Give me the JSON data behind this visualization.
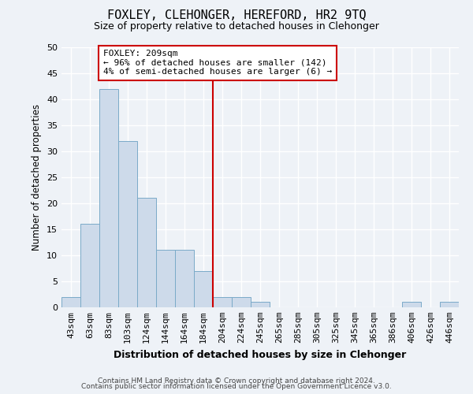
{
  "title": "FOXLEY, CLEHONGER, HEREFORD, HR2 9TQ",
  "subtitle": "Size of property relative to detached houses in Clehonger",
  "xlabel": "Distribution of detached houses by size in Clehonger",
  "ylabel": "Number of detached properties",
  "bin_labels": [
    "43sqm",
    "63sqm",
    "83sqm",
    "103sqm",
    "124sqm",
    "144sqm",
    "164sqm",
    "184sqm",
    "204sqm",
    "224sqm",
    "245sqm",
    "265sqm",
    "285sqm",
    "305sqm",
    "325sqm",
    "345sqm",
    "365sqm",
    "386sqm",
    "406sqm",
    "426sqm",
    "446sqm"
  ],
  "bar_heights": [
    2,
    16,
    42,
    32,
    21,
    11,
    11,
    7,
    2,
    2,
    1,
    0,
    0,
    0,
    0,
    0,
    0,
    0,
    1,
    0,
    1
  ],
  "bar_color": "#cddaea",
  "bar_edge_color": "#7aaac8",
  "vline_x": 8,
  "vline_color": "#cc0000",
  "annotation_text": "FOXLEY: 209sqm\n← 96% of detached houses are smaller (142)\n4% of semi-detached houses are larger (6) →",
  "annotation_box_color": "#ffffff",
  "annotation_box_edge": "#cc0000",
  "ylim": [
    0,
    50
  ],
  "yticks": [
    0,
    5,
    10,
    15,
    20,
    25,
    30,
    35,
    40,
    45,
    50
  ],
  "footer_line1": "Contains HM Land Registry data © Crown copyright and database right 2024.",
  "footer_line2": "Contains public sector information licensed under the Open Government Licence v3.0.",
  "background_color": "#eef2f7",
  "grid_color": "#ffffff"
}
